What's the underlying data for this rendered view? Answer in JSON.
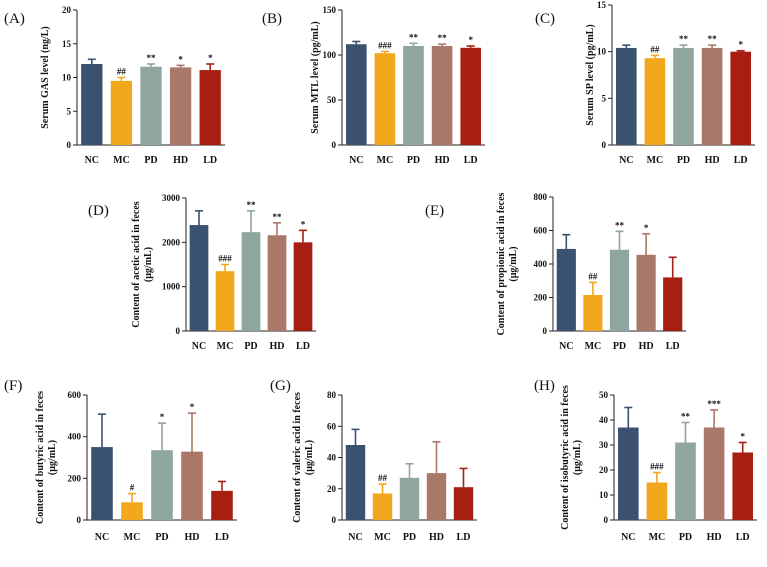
{
  "chart_data": [
    {
      "id": "A",
      "panel_label": "(A)",
      "type": "bar",
      "ylabel": "Serum GAS level (ng/L)",
      "categories": [
        "NC",
        "MC",
        "PD",
        "HD",
        "LD"
      ],
      "values": [
        12.0,
        9.5,
        11.6,
        11.5,
        11.1
      ],
      "errors": [
        0.7,
        0.5,
        0.4,
        0.3,
        0.9
      ],
      "significance": [
        "",
        "##",
        "**",
        "*",
        "*"
      ],
      "ylim": [
        0,
        20
      ],
      "yticks": [
        0,
        5,
        10,
        15,
        20
      ],
      "colors": [
        "#3b5170",
        "#f2a81c",
        "#8fa59f",
        "#a97868",
        "#a61f12"
      ]
    },
    {
      "id": "B",
      "panel_label": "(B)",
      "type": "bar",
      "ylabel": "Serum MTL level (pg/mL)",
      "categories": [
        "NC",
        "MC",
        "PD",
        "HD",
        "LD"
      ],
      "values": [
        112,
        102,
        110,
        110,
        108
      ],
      "errors": [
        3,
        2,
        3,
        2,
        2
      ],
      "significance": [
        "",
        "###",
        "**",
        "**",
        "*"
      ],
      "ylim": [
        0,
        150
      ],
      "yticks": [
        0,
        50,
        100,
        150
      ],
      "colors": [
        "#3b5170",
        "#f2a81c",
        "#8fa59f",
        "#a97868",
        "#a61f12"
      ]
    },
    {
      "id": "C",
      "panel_label": "(C)",
      "type": "bar",
      "ylabel": "Serum SP level (pg/mL)",
      "categories": [
        "NC",
        "MC",
        "PD",
        "HD",
        "LD"
      ],
      "values": [
        10.4,
        9.3,
        10.4,
        10.4,
        10.0
      ],
      "errors": [
        0.3,
        0.3,
        0.3,
        0.3,
        0.1
      ],
      "significance": [
        "",
        "##",
        "**",
        "**",
        "*"
      ],
      "ylim": [
        0,
        15
      ],
      "yticks": [
        0,
        5,
        10,
        15
      ],
      "colors": [
        "#3b5170",
        "#f2a81c",
        "#8fa59f",
        "#a97868",
        "#a61f12"
      ]
    },
    {
      "id": "D",
      "panel_label": "(D)",
      "type": "bar",
      "ylabel_lines": [
        "Content of acetic acid in feces",
        "(μg/mL)"
      ],
      "categories": [
        "NC",
        "MC",
        "PD",
        "HD",
        "LD"
      ],
      "values": [
        2390,
        1350,
        2230,
        2160,
        2000
      ],
      "errors": [
        320,
        150,
        480,
        280,
        270
      ],
      "significance": [
        "",
        "###",
        "**",
        "**",
        "*"
      ],
      "ylim": [
        0,
        3000
      ],
      "yticks": [
        0,
        1000,
        2000,
        3000
      ],
      "colors": [
        "#3b5170",
        "#f2a81c",
        "#8fa59f",
        "#a97868",
        "#a61f12"
      ]
    },
    {
      "id": "E",
      "panel_label": "(E)",
      "type": "bar",
      "ylabel_lines": [
        "Content of propionic acid in feces",
        "(μg/mL)"
      ],
      "categories": [
        "NC",
        "MC",
        "PD",
        "HD",
        "LD"
      ],
      "values": [
        490,
        215,
        485,
        455,
        320
      ],
      "errors": [
        85,
        75,
        110,
        125,
        120
      ],
      "significance": [
        "",
        "##",
        "**",
        "*",
        ""
      ],
      "ylim": [
        0,
        800
      ],
      "yticks": [
        0,
        200,
        400,
        600,
        800
      ],
      "colors": [
        "#3b5170",
        "#f2a81c",
        "#8fa59f",
        "#a97868",
        "#a61f12"
      ]
    },
    {
      "id": "F",
      "panel_label": "(F)",
      "type": "bar",
      "ylabel_lines": [
        "Content of butyric acid in feces",
        "(μg/mL)"
      ],
      "categories": [
        "NC",
        "MC",
        "PD",
        "HD",
        "LD"
      ],
      "values": [
        350,
        85,
        335,
        328,
        140
      ],
      "errors": [
        158,
        42,
        130,
        185,
        45
      ],
      "significance": [
        "",
        "#",
        "*",
        "*",
        ""
      ],
      "ylim": [
        0,
        600
      ],
      "yticks": [
        0,
        200,
        400,
        600
      ],
      "colors": [
        "#3b5170",
        "#f2a81c",
        "#8fa59f",
        "#a97868",
        "#a61f12"
      ]
    },
    {
      "id": "G",
      "panel_label": "(G)",
      "type": "bar",
      "ylabel_lines": [
        "Content of valeric acid in feces",
        "(μg/mL)"
      ],
      "categories": [
        "NC",
        "MC",
        "PD",
        "HD",
        "LD"
      ],
      "values": [
        48,
        17,
        27,
        30,
        21
      ],
      "errors": [
        10,
        6,
        9,
        20,
        12
      ],
      "significance": [
        "",
        "##",
        "",
        "",
        ""
      ],
      "ylim": [
        0,
        80
      ],
      "yticks": [
        0,
        20,
        40,
        60,
        80
      ],
      "colors": [
        "#3b5170",
        "#f2a81c",
        "#8fa59f",
        "#a97868",
        "#a61f12"
      ]
    },
    {
      "id": "H",
      "panel_label": "(H)",
      "type": "bar",
      "ylabel_lines": [
        "Content of isobutyric acid in feces",
        "(μg/mL)"
      ],
      "categories": [
        "NC",
        "MC",
        "PD",
        "HD",
        "LD"
      ],
      "values": [
        37,
        15,
        31,
        37,
        27
      ],
      "errors": [
        8,
        4,
        8,
        7,
        4
      ],
      "significance": [
        "",
        "###",
        "**",
        "***",
        "*"
      ],
      "ylim": [
        0,
        50
      ],
      "yticks": [
        0,
        10,
        20,
        30,
        40,
        50
      ],
      "colors": [
        "#3b5170",
        "#f2a81c",
        "#8fa59f",
        "#a97868",
        "#a61f12"
      ]
    }
  ]
}
